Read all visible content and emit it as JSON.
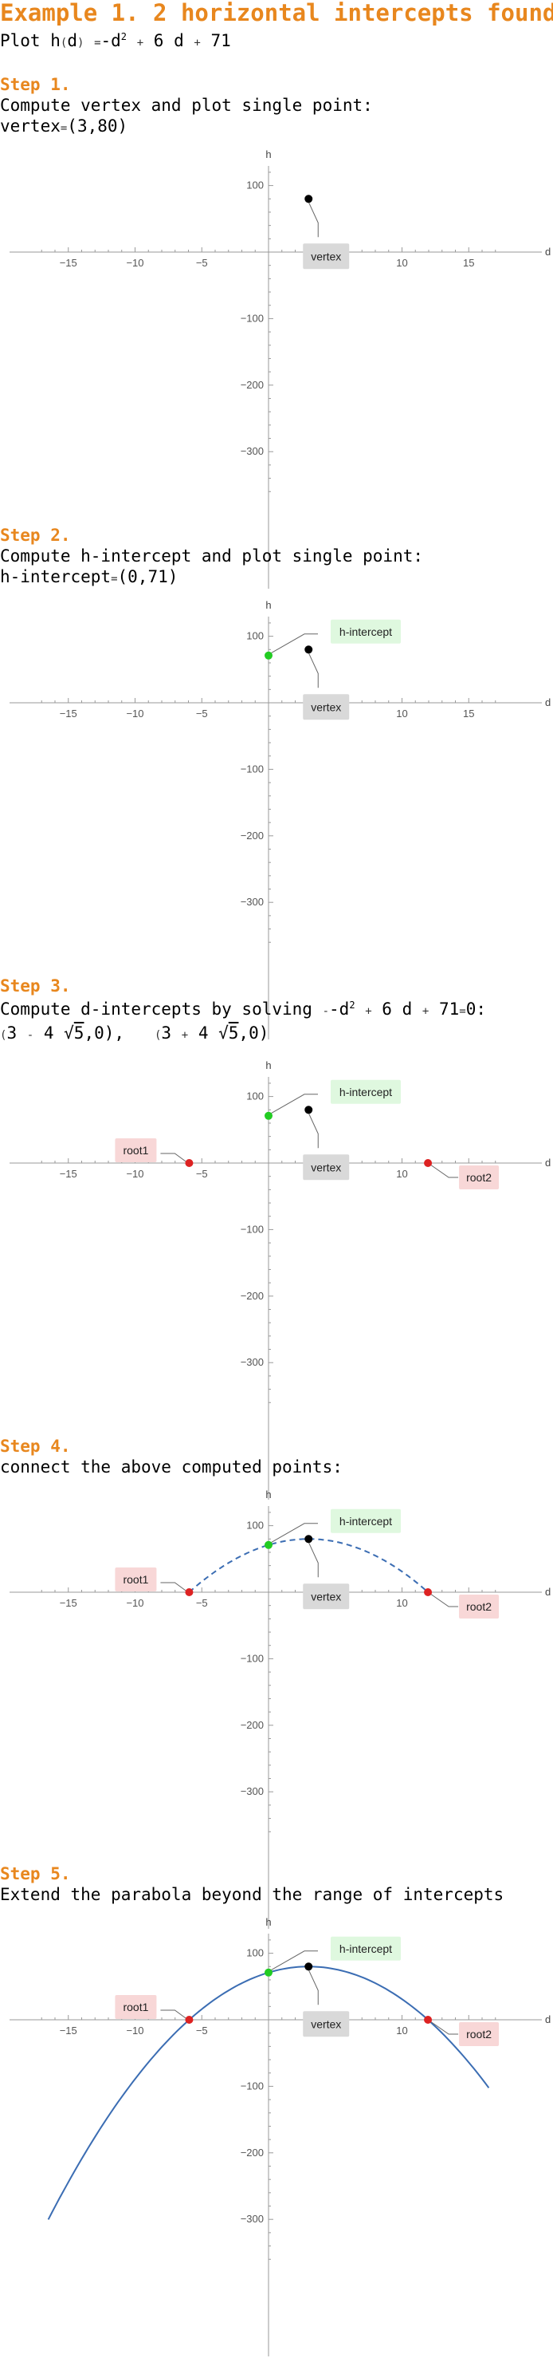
{
  "title": "Example 1. 2 horizontal intercepts found",
  "intro": {
    "prefix": "Plot ",
    "func": "h",
    "arg": "d",
    "expr_start": "-d",
    "exp": "2",
    "expr_mid": "6 d",
    "expr_end": "71"
  },
  "colors": {
    "accent": "#e8871e",
    "vertex": "#000000",
    "h_intercept": "#22cc22",
    "root": "#dd2222",
    "curve": "#3b6db3",
    "label_gray": "#d9d9d9",
    "label_green": "#dff8df",
    "label_red": "#f8d7d7"
  },
  "step1": {
    "heading": "Step 1.",
    "text": "Compute vertex and plot single point:",
    "result_label": "vertex",
    "result_value": "(3,80)"
  },
  "step2": {
    "heading": "Step 2.",
    "text": "Compute h-intercept and plot single point:",
    "result_label": "h-intercept",
    "result_value": "(0,71)"
  },
  "step3": {
    "heading": "Step 3.",
    "text_prefix": "Compute d-intercepts by solving ",
    "eq_start": "-d",
    "eq_exp": "2",
    "eq_mid": "6 d",
    "eq_end": "71",
    "eq_rhs": "0",
    "text_suffix": ":",
    "root1_a": "3",
    "root1_coef": "4",
    "radicand": "5",
    "root1_end": ",0)",
    "root2_a": "3",
    "root2_coef": "4",
    "root2_end": ",0)"
  },
  "step4": {
    "heading": "Step 4.",
    "text": "connect the above computed points:"
  },
  "step5": {
    "heading": "Step 5.",
    "text": "Extend the parabola beyond the range of intercepts"
  },
  "chart_data": [
    {
      "type": "scatter",
      "step": 1,
      "xlabel": "d",
      "ylabel": "h",
      "xlim": [
        -17,
        17
      ],
      "ylim": [
        -370,
        130
      ],
      "x_ticks": [
        -15,
        -10,
        -5,
        5,
        10,
        15
      ],
      "y_ticks": [
        100,
        -100,
        -200,
        -300
      ],
      "points": [
        {
          "name": "vertex",
          "x": 3,
          "y": 80
        }
      ],
      "curve": null
    },
    {
      "type": "scatter",
      "step": 2,
      "xlabel": "d",
      "ylabel": "h",
      "xlim": [
        -17,
        17
      ],
      "ylim": [
        -370,
        130
      ],
      "x_ticks": [
        -15,
        -10,
        -5,
        5,
        10,
        15
      ],
      "y_ticks": [
        100,
        -100,
        -200,
        -300
      ],
      "points": [
        {
          "name": "vertex",
          "x": 3,
          "y": 80
        },
        {
          "name": "h-intercept",
          "x": 0,
          "y": 71
        }
      ],
      "curve": null
    },
    {
      "type": "scatter",
      "step": 3,
      "xlabel": "d",
      "ylabel": "h",
      "xlim": [
        -17,
        17
      ],
      "ylim": [
        -370,
        130
      ],
      "x_ticks": [
        -15,
        -10,
        -5,
        5,
        10,
        15
      ],
      "y_ticks": [
        100,
        -100,
        -200,
        -300
      ],
      "points": [
        {
          "name": "vertex",
          "x": 3,
          "y": 80
        },
        {
          "name": "h-intercept",
          "x": 0,
          "y": 71
        },
        {
          "name": "root1",
          "x": -5.944,
          "y": 0
        },
        {
          "name": "root2",
          "x": 11.944,
          "y": 0
        }
      ],
      "curve": null
    },
    {
      "type": "line",
      "step": 4,
      "xlabel": "d",
      "ylabel": "h",
      "xlim": [
        -17,
        17
      ],
      "ylim": [
        -370,
        130
      ],
      "x_ticks": [
        -15,
        -10,
        -5,
        5,
        10,
        15
      ],
      "y_ticks": [
        100,
        -100,
        -200,
        -300
      ],
      "points": [
        {
          "name": "vertex",
          "x": 3,
          "y": 80
        },
        {
          "name": "h-intercept",
          "x": 0,
          "y": 71
        },
        {
          "name": "root1",
          "x": -5.944,
          "y": 0
        },
        {
          "name": "root2",
          "x": 11.944,
          "y": 0
        }
      ],
      "curve": {
        "a": -1,
        "b": 6,
        "c": 71,
        "from": -5.944,
        "to": 11.944,
        "dashed": true
      }
    },
    {
      "type": "line",
      "step": 5,
      "xlabel": "d",
      "ylabel": "h",
      "xlim": [
        -17,
        17
      ],
      "ylim": [
        -370,
        130
      ],
      "x_ticks": [
        -15,
        -10,
        -5,
        5,
        10,
        15
      ],
      "y_ticks": [
        100,
        -100,
        -200,
        -300
      ],
      "points": [
        {
          "name": "vertex",
          "x": 3,
          "y": 80
        },
        {
          "name": "h-intercept",
          "x": 0,
          "y": 71
        },
        {
          "name": "root1",
          "x": -5.944,
          "y": 0
        },
        {
          "name": "root2",
          "x": 11.944,
          "y": 0
        }
      ],
      "curve": {
        "a": -1,
        "b": 6,
        "c": 71,
        "from": -16.5,
        "to": 16.5,
        "dashed": false
      }
    }
  ]
}
